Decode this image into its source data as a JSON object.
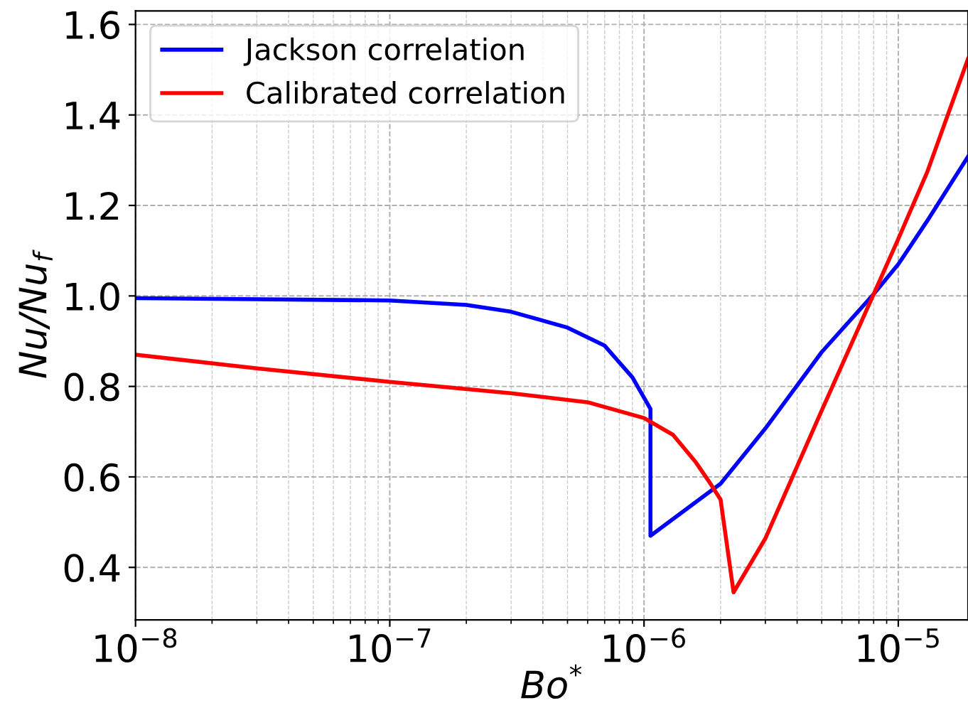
{
  "chart_data": {
    "type": "line",
    "xlabel": "Bo$^{*}$",
    "ylabel": "Nu/Nu$_{f}$",
    "log": "x",
    "xlim": [
      1e-08,
      1.88e-05
    ],
    "ylim": [
      0.284,
      1.63
    ],
    "xticks": [
      {
        "value": 1e-08,
        "label": "10$^{−8}$"
      },
      {
        "value": 1e-07,
        "label": "10$^{−7}$"
      },
      {
        "value": 1e-06,
        "label": "10$^{−6}$"
      },
      {
        "value": 1e-05,
        "label": "10$^{−5}$"
      }
    ],
    "yticks": [
      {
        "value": 0.4,
        "label": "0.4"
      },
      {
        "value": 0.6,
        "label": "0.6"
      },
      {
        "value": 0.8,
        "label": "0.8"
      },
      {
        "value": 1.0,
        "label": "1.0"
      },
      {
        "value": 1.2,
        "label": "1.2"
      },
      {
        "value": 1.4,
        "label": "1.4"
      },
      {
        "value": 1.6,
        "label": "1.6"
      }
    ],
    "grid": true,
    "legend": "top left",
    "line_style": "solid",
    "marker": "none",
    "series": [
      {
        "name": "Jackson correlation",
        "color": "#0000ff",
        "x": [
          1e-08,
          1e-07,
          2e-07,
          3e-07,
          5e-07,
          7e-07,
          9e-07,
          1.06e-06,
          1.06e-06,
          2e-06,
          3e-06,
          5e-06,
          8e-06,
          1e-05,
          1.3e-05,
          1.88e-05
        ],
        "values": [
          0.995,
          0.99,
          0.98,
          0.965,
          0.93,
          0.89,
          0.82,
          0.75,
          0.47,
          0.585,
          0.707,
          0.876,
          1.004,
          1.07,
          1.166,
          1.308
        ]
      },
      {
        "name": "Calibrated correlation",
        "color": "#ff0000",
        "x": [
          1e-08,
          3e-08,
          1e-07,
          3e-07,
          6e-07,
          1e-06,
          1.3e-06,
          1.6e-06,
          1.8e-06,
          2e-06,
          2.25e-06,
          3e-06,
          5e-06,
          8e-06,
          1e-05,
          1.3e-05,
          1.88e-05
        ],
        "values": [
          0.87,
          0.84,
          0.81,
          0.785,
          0.765,
          0.73,
          0.693,
          0.632,
          0.59,
          0.55,
          0.345,
          0.464,
          0.747,
          1.004,
          1.126,
          1.274,
          1.524
        ]
      }
    ]
  }
}
